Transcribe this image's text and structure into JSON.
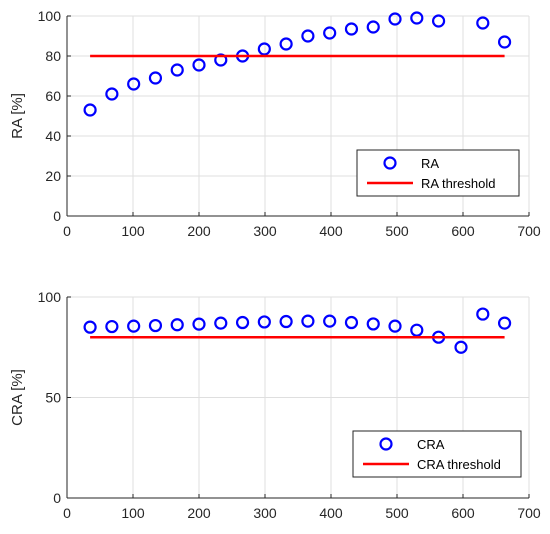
{
  "chart_data": [
    {
      "type": "scatter",
      "xlabel": "",
      "ylabel": "RA [%]",
      "xlim": [
        0,
        700
      ],
      "ylim": [
        0,
        100
      ],
      "xticks": [
        0,
        100,
        200,
        300,
        400,
        500,
        600,
        700
      ],
      "yticks": [
        0,
        20,
        40,
        60,
        80,
        100
      ],
      "grid": true,
      "legend_position": "bottom-right",
      "series": [
        {
          "name": "RA",
          "style": "markers",
          "color": "#0000FF",
          "x": [
            35,
            68,
            101,
            134,
            167,
            200,
            233,
            266,
            299,
            332,
            365,
            398,
            431,
            464,
            497,
            530,
            563,
            630,
            663
          ],
          "y": [
            53,
            61,
            66,
            69,
            73,
            75.5,
            78,
            80,
            83.5,
            86,
            90,
            91.5,
            93.5,
            94.5,
            98.5,
            99,
            97.5,
            96.5,
            87
          ]
        },
        {
          "name": "RA threshold",
          "style": "line",
          "color": "#FF0000",
          "x": [
            35,
            663
          ],
          "y": [
            80,
            80
          ]
        }
      ]
    },
    {
      "type": "scatter",
      "xlabel": "",
      "ylabel": "CRA [%]",
      "xlim": [
        0,
        700
      ],
      "ylim": [
        0,
        100
      ],
      "xticks": [
        0,
        100,
        200,
        300,
        400,
        500,
        600,
        700
      ],
      "yticks": [
        0,
        50,
        100
      ],
      "grid": true,
      "legend_position": "bottom-right",
      "series": [
        {
          "name": "CRA",
          "style": "markers",
          "color": "#0000FF",
          "x": [
            35,
            68,
            101,
            134,
            167,
            200,
            233,
            266,
            299,
            332,
            365,
            398,
            431,
            464,
            497,
            530,
            563,
            597,
            630,
            663
          ],
          "y": [
            85,
            85.3,
            85.5,
            85.8,
            86.2,
            86.5,
            87,
            87.3,
            87.6,
            87.8,
            88,
            88,
            87.3,
            86.6,
            85.5,
            83.5,
            80,
            75,
            91.5,
            87
          ]
        },
        {
          "name": "CRA threshold",
          "style": "line",
          "color": "#FF0000",
          "x": [
            35,
            663
          ],
          "y": [
            80,
            80
          ]
        }
      ]
    }
  ]
}
